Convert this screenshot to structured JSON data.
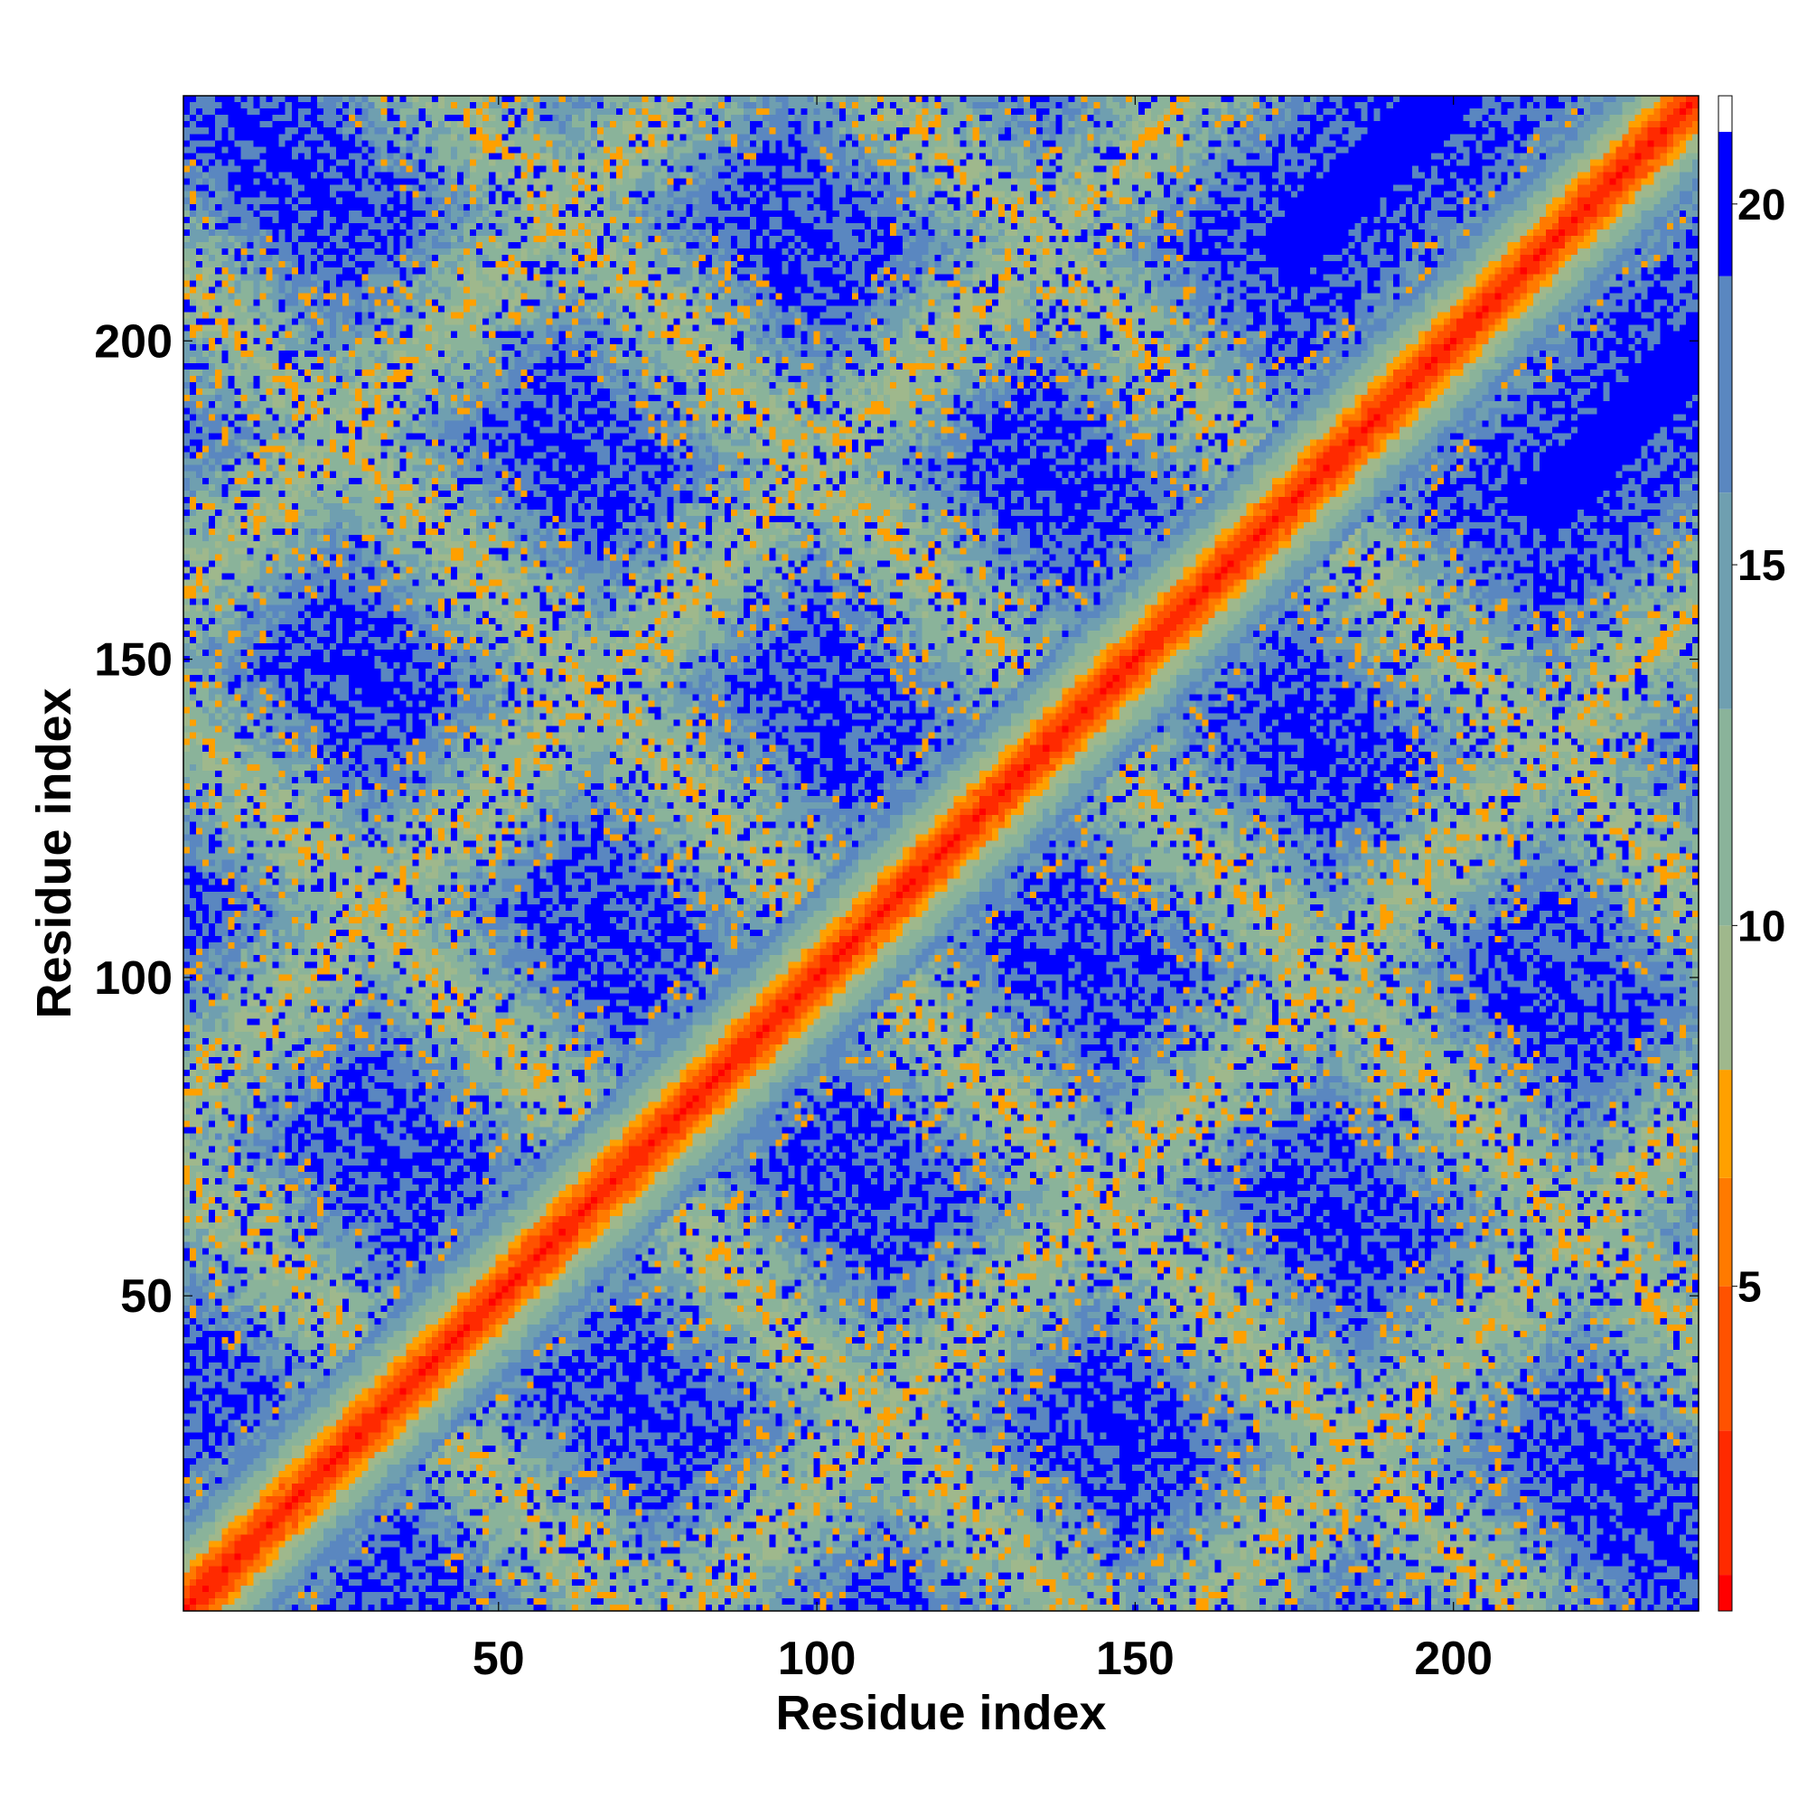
{
  "chart_data": {
    "type": "heatmap",
    "title": "",
    "xlabel": "Residue index",
    "ylabel": "Residue index",
    "xlim": [
      1,
      238
    ],
    "ylim": [
      1,
      238
    ],
    "x_ticks": [
      50,
      100,
      150,
      200
    ],
    "y_ticks": [
      50,
      100,
      150,
      200
    ],
    "matrix_size": 238,
    "matrix_description": "Symmetric residue-residue distance map; low values (red) along the main diagonal, medium values (green/teal) in bands forming a lattice of diamond shapes, high values (blue) elsewhere",
    "diagonal_band": {
      "center_value": 1,
      "half_width_residues": 14
    },
    "crossing_bands": {
      "family_a_x_plus_y": [
        70,
        140,
        210,
        280,
        350
      ],
      "family_b_y_minus_x": [
        -160,
        -80,
        0,
        80,
        160
      ],
      "band_value_range": [
        8,
        18
      ]
    },
    "colorbar": {
      "min": 0.5,
      "max": 21.5,
      "ticks": [
        5,
        10,
        15,
        20
      ],
      "colors": [
        "#ff0000",
        "#ff2a00",
        "#ff5200",
        "#ff7a00",
        "#ffa000",
        "#9fb88c",
        "#8ab39a",
        "#6f9fb0",
        "#5a87c0",
        "#0000ff"
      ],
      "color_stops": [
        1,
        3,
        5,
        6.5,
        8,
        10,
        13,
        16,
        19,
        21
      ]
    },
    "grid": false,
    "legend": "none"
  }
}
